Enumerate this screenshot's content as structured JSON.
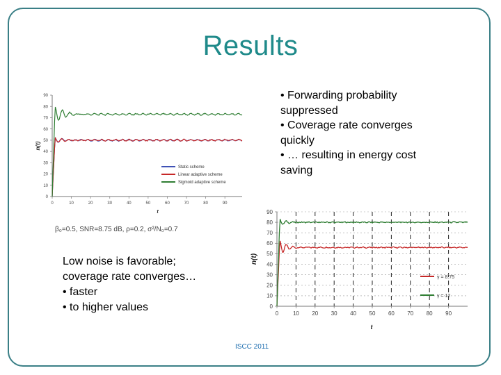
{
  "slide": {
    "title": "Results",
    "bullets": [
      "• Forwarding probability suppressed",
      "• Coverage rate converges quickly",
      "• … resulting in energy cost saving"
    ],
    "params": "β₀=0.5, SNR=8.75 dB, ρ=0.2, σ²/N₀=0.7",
    "note": [
      "Low noise is favorable;",
      "coverage rate converges…",
      "• faster",
      "• to higher values"
    ],
    "footer": "ISCC 2011",
    "colors": {
      "title": "#1f8a8a",
      "border": "#3a7f86",
      "green": "#2e7d32",
      "red": "#c62828",
      "blue": "#3f51b5"
    }
  },
  "chart_data": [
    {
      "type": "line",
      "xlabel": "t",
      "ylabel": "n(t)",
      "xlim": [
        0,
        99
      ],
      "ylim": [
        0,
        90
      ],
      "xticks": [
        0,
        10,
        20,
        30,
        40,
        50,
        60,
        70,
        80,
        90
      ],
      "yticks": [
        0,
        10,
        20,
        30,
        40,
        50,
        60,
        70,
        80,
        90
      ],
      "legend_position": "bottom-right",
      "series": [
        {
          "name": "Static scheme",
          "color": "#3f51b5",
          "steady": 50,
          "overshoot": 52
        },
        {
          "name": "Linear adaptive scheme",
          "color": "#c62828",
          "steady": 50,
          "overshoot": 52
        },
        {
          "name": "Sigmoid adaptive scheme",
          "color": "#2e7d32",
          "steady": 73,
          "overshoot": 80
        }
      ]
    },
    {
      "type": "line",
      "xlabel": "t",
      "ylabel": "n(t)",
      "xlim": [
        0,
        100
      ],
      "ylim": [
        0,
        90
      ],
      "xticks": [
        0,
        10,
        20,
        30,
        40,
        50,
        60,
        70,
        80,
        90
      ],
      "yticks": [
        0,
        10,
        20,
        30,
        40,
        50,
        60,
        70,
        80,
        90
      ],
      "legend_position": "right",
      "series": [
        {
          "name": "γ = 8.75",
          "color": "#c62828",
          "steady": 56,
          "overshoot": 63
        },
        {
          "name": "γ = 12",
          "color": "#2e7d32",
          "steady": 80,
          "overshoot": 83
        }
      ]
    }
  ]
}
